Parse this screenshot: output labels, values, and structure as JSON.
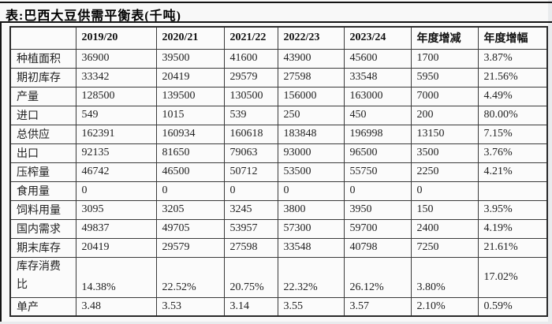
{
  "title": "表:巴西大豆供需平衡表(千吨)",
  "table": {
    "columns": [
      "",
      "2019/20",
      "2020/21",
      "2021/22",
      "2022/23",
      "2023/24",
      "年度增减",
      "年度增幅"
    ],
    "rows": [
      {
        "label": "种植面积",
        "values": [
          "36900",
          "39500",
          "41600",
          "43900",
          "45600",
          "1700",
          "3.87%"
        ]
      },
      {
        "label": "期初库存",
        "values": [
          "33342",
          "20419",
          "29579",
          "27598",
          "33548",
          "5950",
          "21.56%"
        ]
      },
      {
        "label": "产量",
        "values": [
          "128500",
          "139500",
          "130500",
          "156000",
          "163000",
          "7000",
          "4.49%"
        ]
      },
      {
        "label": "进口",
        "values": [
          "549",
          "1015",
          "539",
          "250",
          "450",
          "200",
          "80.00%"
        ]
      },
      {
        "label": "总供应",
        "values": [
          "162391",
          "160934",
          "160618",
          "183848",
          "196998",
          "13150",
          "7.15%"
        ]
      },
      {
        "label": "出口",
        "values": [
          "92135",
          "81650",
          "79063",
          "93000",
          "96500",
          "3500",
          "3.76%"
        ]
      },
      {
        "label": "压榨量",
        "values": [
          "46742",
          "46500",
          "50712",
          "53500",
          "55750",
          "2250",
          "4.21%"
        ]
      },
      {
        "label": "食用量",
        "values": [
          "0",
          "0",
          "0",
          "0",
          "0",
          "0",
          ""
        ]
      },
      {
        "label": "饲料用量",
        "values": [
          "3095",
          "3205",
          "3245",
          "3800",
          "3950",
          "150",
          "3.95%"
        ]
      },
      {
        "label": "国内需求",
        "values": [
          "49837",
          "49705",
          "53957",
          "57300",
          "59700",
          "2400",
          "4.19%"
        ]
      },
      {
        "label": "期末库存",
        "values": [
          "20419",
          "29579",
          "27598",
          "33548",
          "40798",
          "7250",
          "21.61%"
        ]
      },
      {
        "label": "库存消费比",
        "values": [
          "14.38%",
          "22.52%",
          "20.75%",
          "22.32%",
          "26.12%",
          "3.80%",
          "17.02%"
        ],
        "tall": true
      },
      {
        "label": "单产",
        "values": [
          "3.48",
          "3.53",
          "3.14",
          "3.55",
          "3.57",
          "2.10%",
          "0.59%"
        ]
      }
    ]
  },
  "colors": {
    "page_background": "#e9ebed",
    "content_background": "#f8f8f8",
    "cell_background": "#fbfbfb",
    "border": "#3a3a3a",
    "rule": "#141414",
    "text": "#222222"
  }
}
